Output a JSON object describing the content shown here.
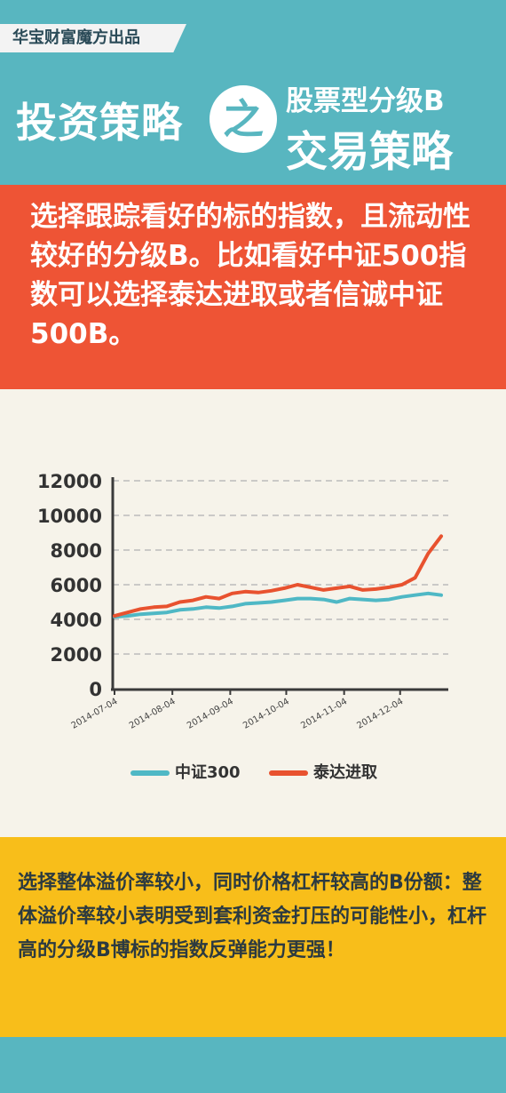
{
  "header": {
    "brand": "华宝财富魔方出品",
    "title_left": "投资策略",
    "title_connector": "之",
    "title_right_top": "股票型分级B",
    "title_right_bottom": "交易策略"
  },
  "intro": {
    "text": "选择跟踪看好的标的指数，且流动性较好的分级B。比如看好中证500指数可以选择泰达进取或者信诚中证500B。"
  },
  "colors": {
    "teal": "#58b6c0",
    "red": "#ee5435",
    "yellow": "#f8be1a",
    "cream": "#f6f3ea",
    "series_1": "#4fb8c5",
    "series_2": "#e8522f"
  },
  "chart_data": {
    "type": "line",
    "x": [
      "2014-07-04",
      "2014-07-11",
      "2014-07-18",
      "2014-07-25",
      "2014-08-01",
      "2014-08-08",
      "2014-08-15",
      "2014-08-22",
      "2014-08-29",
      "2014-09-05",
      "2014-09-12",
      "2014-09-19",
      "2014-09-26",
      "2014-10-03",
      "2014-10-10",
      "2014-10-17",
      "2014-10-24",
      "2014-10-31",
      "2014-11-07",
      "2014-11-14",
      "2014-11-21",
      "2014-11-28",
      "2014-12-05",
      "2014-12-12",
      "2014-12-19",
      "2014-12-26"
    ],
    "xticks": [
      "2014-07-04",
      "2014-08-04",
      "2014-09-04",
      "2014-10-04",
      "2014-11-04",
      "2014-12-04"
    ],
    "ylim": [
      0,
      12000
    ],
    "yticks": [
      0,
      2000,
      4000,
      6000,
      8000,
      10000,
      12000
    ],
    "grid": true,
    "legend_position": "bottom",
    "series": [
      {
        "name": "中证300",
        "color": "#4fb8c5",
        "values": [
          4150,
          4200,
          4300,
          4350,
          4400,
          4550,
          4600,
          4700,
          4650,
          4750,
          4900,
          4950,
          5000,
          5100,
          5200,
          5200,
          5150,
          5000,
          5200,
          5150,
          5100,
          5150,
          5300,
          5400,
          5500,
          5400
        ]
      },
      {
        "name": "泰达进取",
        "color": "#e8522f",
        "values": [
          4200,
          4400,
          4600,
          4700,
          4750,
          5000,
          5100,
          5300,
          5200,
          5500,
          5600,
          5550,
          5650,
          5800,
          6000,
          5850,
          5700,
          5800,
          5900,
          5700,
          5750,
          5850,
          6000,
          6400,
          7800,
          8800
        ]
      }
    ]
  },
  "conclusion": {
    "text": "选择整体溢价率较小，同时价格杠杆较高的B份额：整体溢价率较小表明受到套利资金打压的可能性小，杠杆高的分级B博标的指数反弹能力更强！"
  }
}
